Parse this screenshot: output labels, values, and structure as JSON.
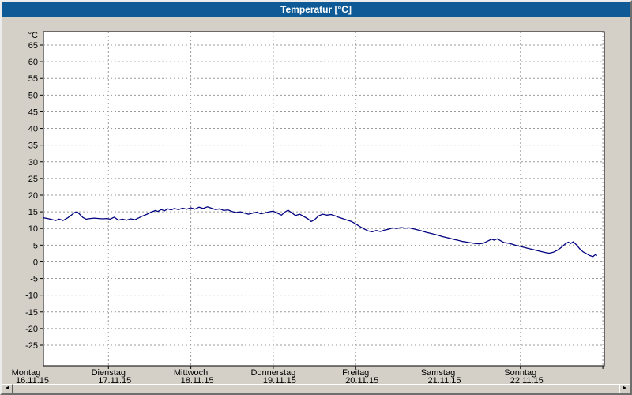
{
  "window": {
    "title": "Temperatur [°C]"
  },
  "colors": {
    "titlebar": "#0e5a96",
    "window_bg": "#d4d0c8",
    "plot_bg": "#ffffff",
    "grid": "#9a9a9a",
    "line": "#000080"
  },
  "scrollbar": {
    "left_icon": "◄",
    "right_icon": "►"
  },
  "chart_data": {
    "type": "line",
    "title": "Temperatur [°C]",
    "ylabel": "°C",
    "y_axis": {
      "unit": "°C",
      "tick_min": -25,
      "tick_max": 65,
      "tick_step": 5,
      "ylim": [
        -31,
        69
      ],
      "grid": true
    },
    "x_axis": {
      "grid": true,
      "days": [
        {
          "label": "Montag",
          "date": "16.11.15"
        },
        {
          "label": "Dienstag",
          "date": "17.11.15"
        },
        {
          "label": "Mittwoch",
          "date": "18.11.15"
        },
        {
          "label": "Donnerstag",
          "date": "19.11.15"
        },
        {
          "label": "Freitag",
          "date": "20.11.15"
        },
        {
          "label": "Samstag",
          "date": "21.11.15"
        },
        {
          "label": "Sonntag",
          "date": "22.11.15"
        }
      ]
    },
    "series": [
      {
        "name": "Temperatur",
        "color": "#000080",
        "points": [
          [
            0.21,
            13.2
          ],
          [
            0.26,
            13.0
          ],
          [
            0.31,
            12.7
          ],
          [
            0.36,
            12.4
          ],
          [
            0.4,
            12.8
          ],
          [
            0.45,
            12.4
          ],
          [
            0.5,
            13.1
          ],
          [
            0.55,
            14.0
          ],
          [
            0.59,
            14.8
          ],
          [
            0.62,
            15.0
          ],
          [
            0.65,
            14.3
          ],
          [
            0.69,
            13.3
          ],
          [
            0.73,
            12.8
          ],
          [
            0.78,
            13.0
          ],
          [
            0.83,
            13.1
          ],
          [
            0.88,
            13.0
          ],
          [
            0.93,
            12.9
          ],
          [
            0.98,
            13.0
          ],
          [
            1.02,
            12.8
          ],
          [
            1.07,
            13.4
          ],
          [
            1.12,
            12.5
          ],
          [
            1.17,
            12.8
          ],
          [
            1.22,
            12.5
          ],
          [
            1.27,
            12.9
          ],
          [
            1.32,
            12.6
          ],
          [
            1.37,
            13.2
          ],
          [
            1.42,
            13.8
          ],
          [
            1.47,
            14.3
          ],
          [
            1.52,
            14.9
          ],
          [
            1.57,
            15.4
          ],
          [
            1.6,
            15.1
          ],
          [
            1.64,
            15.7
          ],
          [
            1.68,
            15.3
          ],
          [
            1.72,
            15.9
          ],
          [
            1.76,
            15.6
          ],
          [
            1.8,
            16.0
          ],
          [
            1.85,
            15.7
          ],
          [
            1.9,
            16.1
          ],
          [
            1.95,
            15.8
          ],
          [
            2.0,
            16.2
          ],
          [
            2.05,
            15.8
          ],
          [
            2.1,
            16.4
          ],
          [
            2.15,
            16.0
          ],
          [
            2.2,
            16.5
          ],
          [
            2.25,
            16.1
          ],
          [
            2.3,
            15.7
          ],
          [
            2.35,
            15.9
          ],
          [
            2.4,
            15.4
          ],
          [
            2.45,
            15.6
          ],
          [
            2.5,
            15.1
          ],
          [
            2.55,
            14.8
          ],
          [
            2.6,
            15.0
          ],
          [
            2.65,
            14.6
          ],
          [
            2.7,
            14.3
          ],
          [
            2.75,
            14.6
          ],
          [
            2.8,
            14.9
          ],
          [
            2.85,
            14.4
          ],
          [
            2.9,
            14.7
          ],
          [
            2.95,
            15.0
          ],
          [
            3.0,
            15.2
          ],
          [
            3.05,
            14.6
          ],
          [
            3.1,
            14.0
          ],
          [
            3.14,
            14.9
          ],
          [
            3.18,
            15.5
          ],
          [
            3.22,
            14.8
          ],
          [
            3.27,
            13.9
          ],
          [
            3.32,
            14.3
          ],
          [
            3.37,
            13.6
          ],
          [
            3.42,
            12.9
          ],
          [
            3.46,
            12.1
          ],
          [
            3.5,
            12.6
          ],
          [
            3.55,
            13.8
          ],
          [
            3.6,
            14.3
          ],
          [
            3.65,
            14.0
          ],
          [
            3.7,
            14.2
          ],
          [
            3.75,
            13.8
          ],
          [
            3.8,
            13.3
          ],
          [
            3.85,
            12.9
          ],
          [
            3.9,
            12.5
          ],
          [
            3.95,
            12.1
          ],
          [
            4.0,
            11.4
          ],
          [
            4.05,
            10.6
          ],
          [
            4.1,
            9.9
          ],
          [
            4.15,
            9.3
          ],
          [
            4.2,
            9.0
          ],
          [
            4.25,
            9.4
          ],
          [
            4.3,
            9.1
          ],
          [
            4.35,
            9.5
          ],
          [
            4.4,
            9.8
          ],
          [
            4.45,
            10.2
          ],
          [
            4.5,
            10.0
          ],
          [
            4.55,
            10.3
          ],
          [
            4.6,
            10.1
          ],
          [
            4.65,
            10.2
          ],
          [
            4.7,
            9.9
          ],
          [
            4.75,
            9.6
          ],
          [
            4.8,
            9.3
          ],
          [
            4.85,
            8.9
          ],
          [
            4.9,
            8.6
          ],
          [
            4.95,
            8.3
          ],
          [
            5.0,
            8.0
          ],
          [
            5.05,
            7.6
          ],
          [
            5.1,
            7.3
          ],
          [
            5.15,
            7.0
          ],
          [
            5.2,
            6.7
          ],
          [
            5.25,
            6.4
          ],
          [
            5.3,
            6.1
          ],
          [
            5.35,
            5.9
          ],
          [
            5.4,
            5.7
          ],
          [
            5.45,
            5.5
          ],
          [
            5.5,
            5.4
          ],
          [
            5.55,
            5.6
          ],
          [
            5.6,
            6.2
          ],
          [
            5.65,
            6.8
          ],
          [
            5.68,
            6.5
          ],
          [
            5.72,
            6.9
          ],
          [
            5.76,
            6.3
          ],
          [
            5.8,
            5.8
          ],
          [
            5.85,
            5.6
          ],
          [
            5.9,
            5.3
          ],
          [
            5.95,
            4.9
          ],
          [
            6.0,
            4.6
          ],
          [
            6.05,
            4.3
          ],
          [
            6.1,
            4.0
          ],
          [
            6.15,
            3.7
          ],
          [
            6.2,
            3.4
          ],
          [
            6.25,
            3.1
          ],
          [
            6.3,
            2.8
          ],
          [
            6.35,
            2.6
          ],
          [
            6.4,
            2.9
          ],
          [
            6.45,
            3.5
          ],
          [
            6.5,
            4.4
          ],
          [
            6.54,
            5.3
          ],
          [
            6.58,
            5.9
          ],
          [
            6.61,
            5.5
          ],
          [
            6.64,
            6.0
          ],
          [
            6.68,
            5.1
          ],
          [
            6.72,
            3.9
          ],
          [
            6.76,
            3.0
          ],
          [
            6.8,
            2.5
          ],
          [
            6.84,
            1.9
          ],
          [
            6.88,
            1.6
          ],
          [
            6.91,
            2.2
          ],
          [
            6.93,
            1.9
          ]
        ]
      }
    ]
  }
}
